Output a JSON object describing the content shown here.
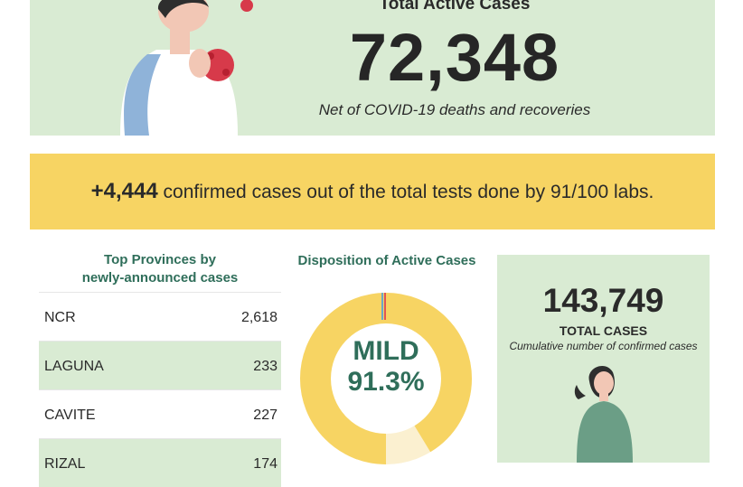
{
  "hero": {
    "title": "Total Active Cases",
    "number": "72,348",
    "note": "Net of COVID-19 deaths and recoveries"
  },
  "banner": {
    "count": "+4,444",
    "text": "confirmed cases out of the total tests done by 91/100 labs."
  },
  "provinces": {
    "title_line1": "Top Provinces by",
    "title_line2": "newly-announced cases",
    "rows": [
      {
        "name": "NCR",
        "value": "2,618"
      },
      {
        "name": "LAGUNA",
        "value": "233"
      },
      {
        "name": "CAVITE",
        "value": "227"
      },
      {
        "name": "RIZAL",
        "value": "174"
      }
    ]
  },
  "disposition": {
    "title": "Disposition of Active Cases",
    "label": "MILD",
    "value": "91.3%",
    "mild_fraction": 0.913,
    "colors": {
      "mild": "#f7d463",
      "other": "#fbf0d0",
      "red": "#e05555",
      "blue": "#6aa7c9"
    }
  },
  "total": {
    "number": "143,749",
    "label": "TOTAL CASES",
    "note": "Cumulative number of confirmed cases"
  }
}
